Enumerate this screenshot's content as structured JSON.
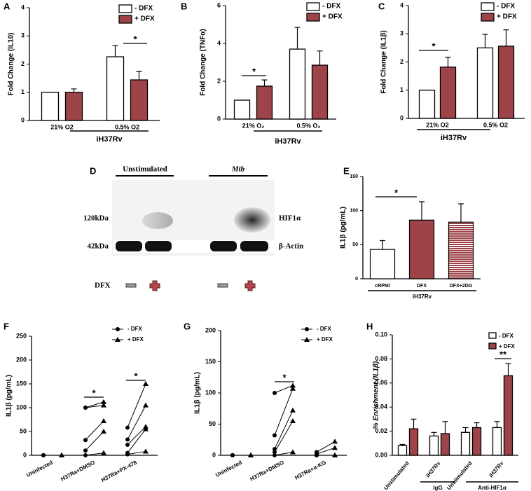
{
  "chart_data": [
    {
      "type": "bar",
      "title": "A",
      "ylabel": "Fold  Change (IL10)",
      "categories": [
        "21% O2",
        "0.5% O2"
      ],
      "group_labels": [
        "iH37Rv"
      ],
      "series": [
        {
          "name": "- DFX",
          "color": "#ffffff",
          "values": [
            1.0,
            2.26
          ],
          "errors": [
            0,
            0.4
          ]
        },
        {
          "name": "+ DFX",
          "color": "#9e4348",
          "values": [
            1.0,
            1.44
          ],
          "errors": [
            0.12,
            0.3
          ]
        }
      ],
      "ylim": [
        0,
        4
      ],
      "yticks": [
        0,
        1,
        2,
        3,
        4
      ],
      "annotations": [
        "*"
      ]
    },
    {
      "type": "bar",
      "title": "B",
      "ylabel": "Fold  Change (TNFα)",
      "categories": [
        "21% O₂",
        "0.5% O₂"
      ],
      "group_labels": [
        "iH37Rv"
      ],
      "series": [
        {
          "name": "- DFX",
          "color": "#ffffff",
          "values": [
            1.0,
            3.7
          ],
          "errors": [
            0,
            1.15
          ]
        },
        {
          "name": "+ DFX",
          "color": "#9e4348",
          "values": [
            1.74,
            2.85
          ],
          "errors": [
            0.33,
            0.75
          ]
        }
      ],
      "ylim": [
        0,
        6
      ],
      "yticks": [
        0,
        2,
        4,
        6
      ],
      "annotations": [
        "*"
      ]
    },
    {
      "type": "bar",
      "title": "C",
      "ylabel": "Fold  Change (IL1β)",
      "categories": [
        "21% O2",
        "0.5% O2"
      ],
      "group_labels": [
        "iH37Rv"
      ],
      "series": [
        {
          "name": "- DFX",
          "color": "#ffffff",
          "values": [
            1.0,
            2.5
          ],
          "errors": [
            0,
            0.48
          ]
        },
        {
          "name": "+ DFX",
          "color": "#9e4348",
          "values": [
            1.82,
            2.56
          ],
          "errors": [
            0.35,
            0.58
          ]
        }
      ],
      "ylim": [
        0,
        4
      ],
      "yticks": [
        0,
        1,
        2,
        3,
        4
      ],
      "annotations": [
        "*"
      ]
    },
    {
      "type": "bar",
      "title": "E",
      "ylabel": "IL1β (pg/mL)",
      "categories": [
        "cRPMI",
        "DFX",
        "DFX+2DG"
      ],
      "group_labels": [
        "iH37Rv"
      ],
      "values": [
        43,
        86,
        83
      ],
      "errors": [
        13,
        27,
        27
      ],
      "colors": [
        "#ffffff",
        "#9e4348",
        "#9e4348"
      ],
      "hatch": [
        false,
        false,
        true
      ],
      "ylim": [
        0,
        150
      ],
      "yticks": [
        0,
        50,
        100,
        150
      ],
      "annotations": [
        "*"
      ]
    },
    {
      "type": "paired",
      "title": "F",
      "ylabel": "IL1β (pg/mL)",
      "categories": [
        "Uninfected",
        "H37Ra+DMSO",
        "H37Ra+PX-478"
      ],
      "series": [
        {
          "name": "- DFX",
          "marker": "circle",
          "values": [
            [
              0,
              0,
              0,
              0,
              0
            ],
            [
              100,
              100,
              32,
              10,
              0
            ],
            [
              58,
              33,
              22,
              5,
              2
            ]
          ]
        },
        {
          "name": "+ DFX",
          "marker": "triangle",
          "values": [
            [
              0,
              0,
              0,
              0,
              0
            ],
            [
              112,
              105,
              72,
              50,
              5
            ],
            [
              150,
              105,
              60,
              55,
              8
            ]
          ]
        }
      ],
      "ylim": [
        0,
        250
      ],
      "yticks": [
        0,
        50,
        100,
        150,
        200,
        250
      ],
      "annotations": [
        "*",
        "*"
      ]
    },
    {
      "type": "paired",
      "title": "G",
      "ylabel": "IL1β (pg/mL)",
      "categories": [
        "Uninfected",
        "H37Ra+DMSO",
        "H37Ra+α-KG"
      ],
      "series": [
        {
          "name": "- DFX",
          "marker": "circle",
          "values": [
            [
              0,
              0,
              0,
              0,
              0
            ],
            [
              100,
              32,
              10,
              5,
              0
            ],
            [
              5,
              2,
              0,
              0,
              0
            ]
          ]
        },
        {
          "name": "+ DFX",
          "marker": "triangle",
          "values": [
            [
              0,
              0,
              0,
              0,
              0
            ],
            [
              112,
              107,
              72,
              55,
              5
            ],
            [
              22,
              12,
              0,
              0,
              0
            ]
          ]
        }
      ],
      "ylim": [
        0,
        200
      ],
      "yticks": [
        0,
        50,
        100,
        150,
        200
      ],
      "annotations": [
        "*"
      ]
    },
    {
      "type": "bar",
      "title": "H",
      "ylabel": "% Enrichment (IL1β)",
      "categories": [
        "Unstimulated",
        "iH37Rv",
        "Unstimulated",
        "iH37Rv"
      ],
      "group_labels": [
        "IgG",
        "Anti-HIF1α"
      ],
      "series": [
        {
          "name": "- DFX",
          "color": "#ffffff",
          "values": [
            0.008,
            0.016,
            0.019,
            0.023
          ],
          "errors": [
            0.001,
            0.003,
            0.004,
            0.005
          ]
        },
        {
          "name": "+ DFX",
          "color": "#9e4348",
          "values": [
            0.022,
            0.018,
            0.023,
            0.066
          ],
          "errors": [
            0.008,
            0.01,
            0.004,
            0.01
          ]
        }
      ],
      "ylim": [
        0,
        0.1
      ],
      "yticks": [
        {
          "value": 0,
          "label": "0.00"
        },
        {
          "value": 0.02,
          "label": "0.02"
        },
        {
          "value": 0.04,
          "label": "0.04"
        },
        {
          "value": 0.06,
          "label": "0.06"
        },
        {
          "value": 0.08,
          "label": "0.08"
        },
        {
          "value": 0.1,
          "label": "0.10"
        }
      ],
      "annotations": [
        "**"
      ]
    }
  ],
  "blot": {
    "title": "D",
    "conditions": [
      "Unstimulated",
      "Mtb"
    ],
    "bands": [
      "120kDa",
      "42kDa"
    ],
    "proteins": [
      "HIF1α",
      "β-Actin"
    ],
    "treatment": "DFX"
  }
}
